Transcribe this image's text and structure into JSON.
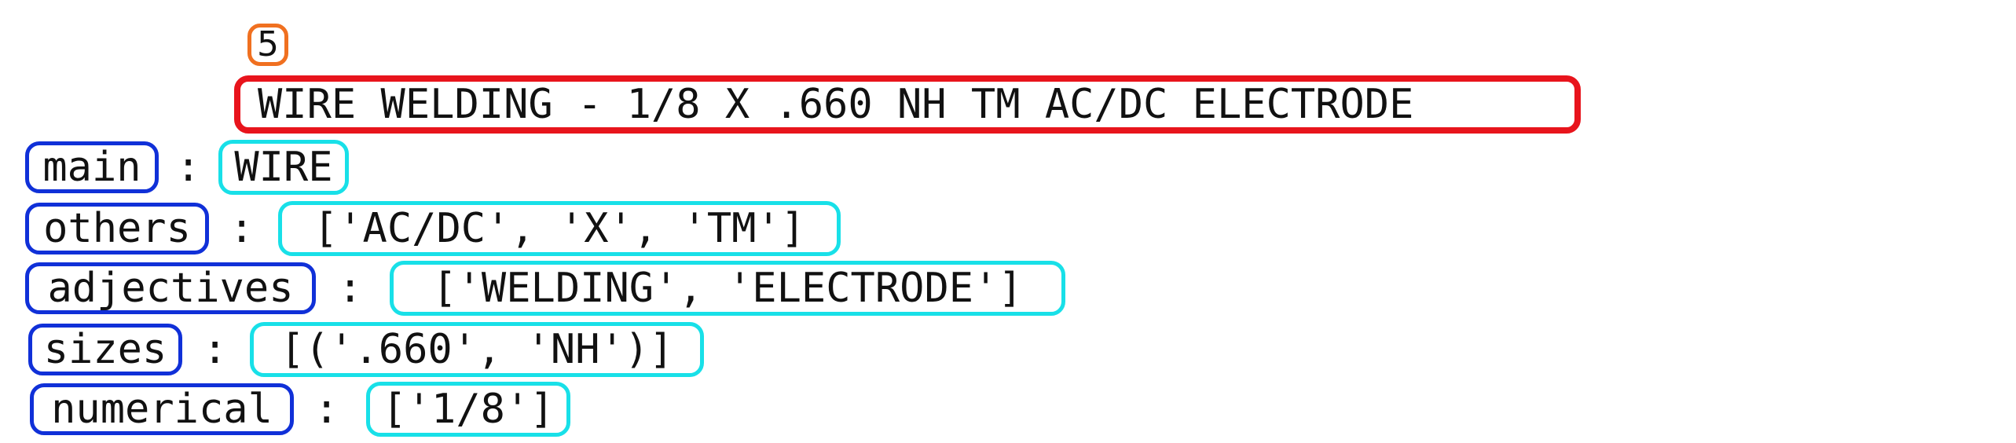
{
  "badge": "5",
  "title": "WIRE WELDING - 1/8 X .660 NH TM AC/DC ELECTRODE",
  "fields": {
    "main": {
      "key": "main",
      "value": "WIRE"
    },
    "others": {
      "key": "others",
      "value": "['AC/DC', 'X', 'TM']"
    },
    "adjectives": {
      "key": "adjectives",
      "value": "['WELDING', 'ELECTRODE']"
    },
    "sizes": {
      "key": "sizes",
      "value": "[('.660', 'NH')]"
    },
    "numerical": {
      "key": "numerical",
      "value": "['1/8']"
    }
  },
  "separator": ":",
  "colors": {
    "badge_border": "#f07020",
    "title_border": "#e8141c",
    "key_border": "#1030d8",
    "value_border": "#18e0e8"
  }
}
